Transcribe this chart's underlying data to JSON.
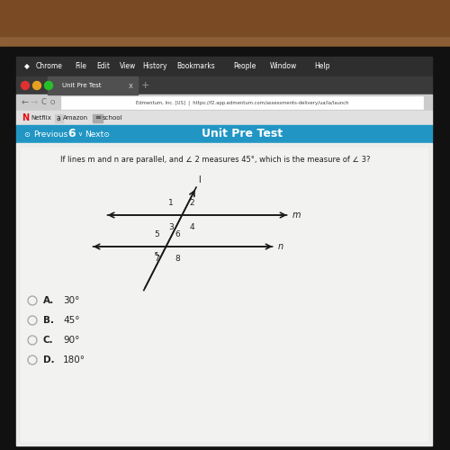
{
  "bg_top": "#7a4a2a",
  "bg_bezel": "#111111",
  "screen_left_shadow": "#1a1a1a",
  "toolbar_bg": "#2a2a2a",
  "tab_bar_bg": "#3d3d3d",
  "tab_active_bg": "#555555",
  "addr_bar_bg": "#d8d8d8",
  "addr_url_bg": "#ffffff",
  "bm_bar_bg": "#e8e8e8",
  "nav_bar_bg": "#2196c4",
  "content_bg": "#ebebeb",
  "line_color": "#1a1a1a",
  "question_text": "If lines m and n are parallel, and ∠ 2 measures 45°, which is the measure of ∠ 3?",
  "title_text": "Unit Pre Test",
  "nav_left": "Previous",
  "nav_num": "6",
  "nav_right": "Next",
  "choices_letter": [
    "A.",
    "B.",
    "C.",
    "D."
  ],
  "choices_val": [
    "30°",
    "45°",
    "90°",
    "180°"
  ],
  "chrome_menubar": [
    "",
    "Chrome",
    "File",
    "Edit",
    "View",
    "History",
    "Bookmarks",
    "People",
    "Window",
    "Help"
  ],
  "tab_title": "Unit Pre Test",
  "url": "Edmentum, Inc. [US]  |  https://f2.app.edmentum.com/assessments-delivery/ua/la/launch",
  "dot_colors": [
    "#e03030",
    "#e8a020",
    "#28c028"
  ],
  "text_dark": "#222222",
  "text_white": "#ffffff",
  "text_gray": "#888888"
}
